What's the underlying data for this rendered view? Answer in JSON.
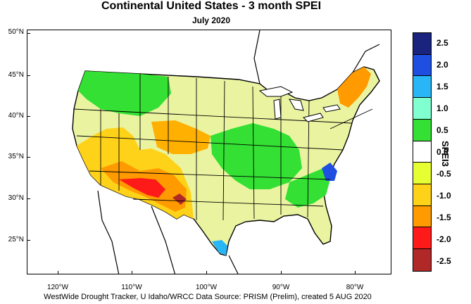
{
  "title": "Continental United States - 3 month SPEI",
  "subtitle": "July 2020",
  "footer": "WestWide Drought Tracker, U Idaho/WRCC Data Source: PRISM (Prelim), created  5 AUG 2020",
  "latitude_labels": [
    "50°N",
    "45°N",
    "40°N",
    "35°N",
    "30°N",
    "25°N"
  ],
  "longitude_labels": [
    "120°W",
    "110°W",
    "100°W",
    "90°W",
    "80°W"
  ],
  "colorbar": {
    "title": "SPEI3",
    "labels": [
      "2.5",
      "2.0",
      "1.5",
      "1.0",
      "0.5",
      "0.0",
      "-0.5",
      "-1.0",
      "-1.5",
      "-2.0",
      "-2.5"
    ],
    "colors": [
      "#1a237e",
      "#1e4fe0",
      "#29b6f6",
      "#80ffd0",
      "#33e033",
      "#ffffff",
      "#e6ff33",
      "#ffd21a",
      "#ff9a00",
      "#ff1a1a",
      "#b02828"
    ]
  }
}
